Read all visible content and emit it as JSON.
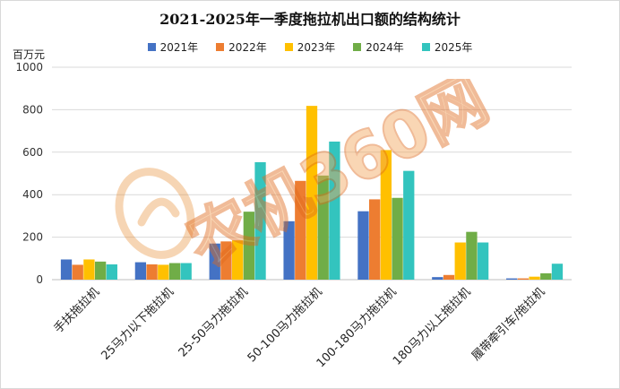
{
  "chart_data": {
    "type": "bar",
    "title": "2021-2025年一季度拖拉机出口额的结构统计",
    "ylabel": "百万元",
    "xlabel": "",
    "ylim": [
      0,
      1000
    ],
    "yticks": [
      "0",
      "200",
      "400",
      "600",
      "800",
      "1000"
    ],
    "grid": true,
    "legend_position": "top",
    "categories": [
      "手扶拖拉机",
      "25马力以下拖拉机",
      "25-50马力拖拉机",
      "50-100马力拖拉机",
      "100-180马力拖拉机",
      "180马力以上拖拉机",
      "履带牵引车/拖拉机"
    ],
    "series": [
      {
        "name": "2021年",
        "color": "#4472C4",
        "values": [
          95,
          82,
          170,
          275,
          322,
          12,
          6
        ]
      },
      {
        "name": "2022年",
        "color": "#ED7D31",
        "values": [
          70,
          72,
          180,
          465,
          378,
          22,
          6
        ]
      },
      {
        "name": "2023年",
        "color": "#FFC000",
        "values": [
          95,
          70,
          185,
          818,
          610,
          175,
          14
        ]
      },
      {
        "name": "2024年",
        "color": "#70AD47",
        "values": [
          85,
          78,
          320,
          490,
          385,
          225,
          30
        ]
      },
      {
        "name": "2025年",
        "color": "#33C4BE",
        "values": [
          72,
          78,
          553,
          650,
          512,
          175,
          75
        ]
      }
    ]
  },
  "watermark": {
    "text": "农机360网"
  }
}
